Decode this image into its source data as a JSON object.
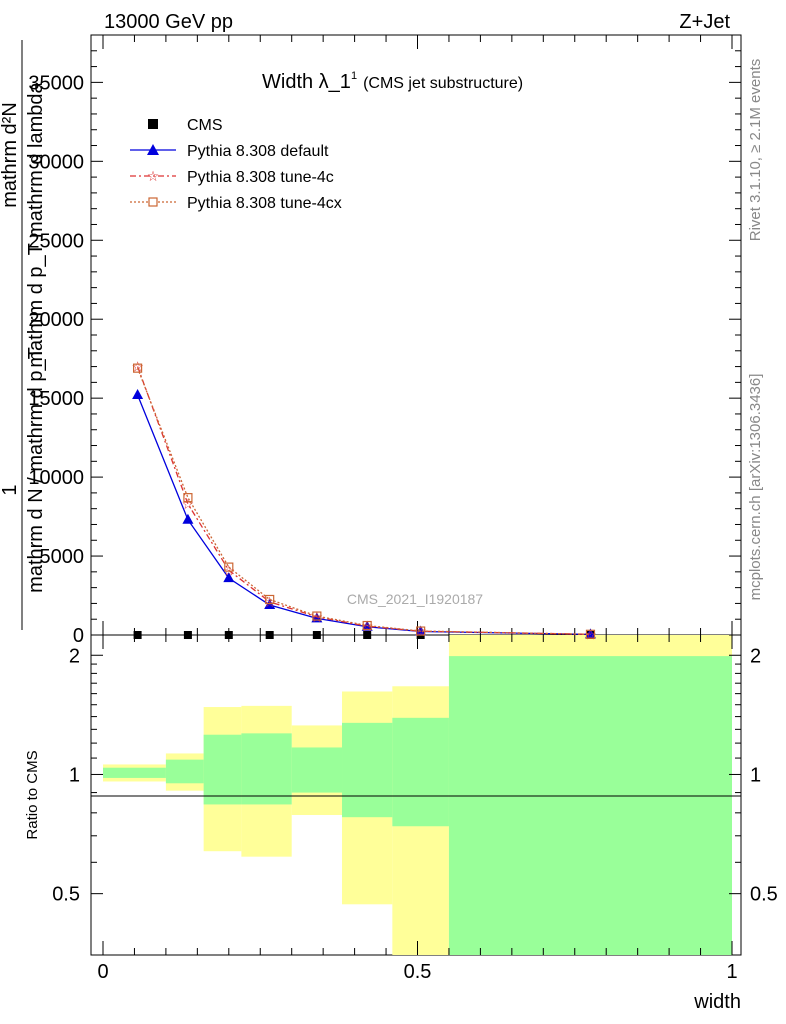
{
  "header": {
    "energy_label": "13000 GeV pp",
    "process_label": "Z+Jet"
  },
  "title": {
    "main": "Width λ_1",
    "superscript": "1",
    "sub": "(CMS jet substructure)"
  },
  "analysis_id": "CMS_2021_I1920187",
  "side_texts": {
    "rivet": "Rivet 3.1.10, ≥ 2.1M events",
    "mcplots": "mcplots.cern.ch [arXiv:1306.3436]"
  },
  "main_plot": {
    "ylabel_lines": [
      "mathrm d²N",
      "mathrm d p_T mathrm d lambda",
      "1",
      "mathrm d N / mathrm d p_T"
    ],
    "ylim": [
      0,
      38000
    ],
    "yticks": [
      0,
      5000,
      10000,
      15000,
      20000,
      25000,
      30000,
      35000
    ],
    "ytick_labels": [
      "0",
      "5000",
      "10000",
      "15000",
      "20000",
      "25000",
      "30000",
      "35000"
    ]
  },
  "ratio_plot": {
    "ylabel": "Ratio to CMS",
    "ylim": [
      0.35,
      2.25
    ],
    "yticks": [
      0.5,
      1,
      2
    ],
    "ytick_labels": [
      "0.5",
      "1",
      "2"
    ]
  },
  "x_axis": {
    "label": "width",
    "xlim": [
      0,
      1
    ],
    "ticks": [
      0,
      0.5,
      1
    ],
    "tick_labels": [
      "0",
      "0.5",
      "1"
    ]
  },
  "legend": [
    {
      "label": "CMS",
      "color": "#000000",
      "marker": "square"
    },
    {
      "label": "Pythia 8.308 default",
      "color": "#0000dd",
      "marker": "triangle"
    },
    {
      "label": "Pythia 8.308 tune-4c",
      "color": "#dd3333",
      "marker": "star"
    },
    {
      "label": "Pythia 8.308 tune-4cx",
      "color": "#cc6633",
      "marker": "open-square"
    }
  ],
  "chart_data": {
    "type": "line",
    "bin_edges": [
      0,
      0.1,
      0.16,
      0.22,
      0.3,
      0.38,
      0.46,
      0.55,
      1.0
    ],
    "x": [
      0.055,
      0.135,
      0.2,
      0.265,
      0.34,
      0.42,
      0.505,
      0.775
    ],
    "series": [
      {
        "name": "CMS",
        "color": "#000000",
        "values": [
          0,
          0,
          0,
          0,
          0,
          0,
          0,
          0
        ]
      },
      {
        "name": "Pythia 8.308 default",
        "color": "#0000dd",
        "values": [
          15200,
          7300,
          3600,
          1900,
          1050,
          520,
          220,
          40
        ]
      },
      {
        "name": "Pythia 8.308 tune-4c",
        "color": "#dd3333",
        "values": [
          17000,
          8300,
          4100,
          2100,
          1150,
          560,
          240,
          45
        ]
      },
      {
        "name": "Pythia 8.308 tune-4cx",
        "color": "#cc6633",
        "values": [
          16900,
          8700,
          4300,
          2250,
          1200,
          600,
          250,
          45
        ]
      }
    ],
    "ratio_bands": {
      "yellow": [
        [
          0.96,
          1.06
        ],
        [
          0.91,
          1.13
        ],
        [
          0.64,
          1.48
        ],
        [
          0.62,
          1.49
        ],
        [
          0.79,
          1.33
        ],
        [
          0.47,
          1.62
        ],
        [
          0.32,
          1.67
        ],
        [
          0.3,
          2.3
        ]
      ],
      "green": [
        [
          0.98,
          1.04
        ],
        [
          0.95,
          1.09
        ],
        [
          0.84,
          1.26
        ],
        [
          0.84,
          1.27
        ],
        [
          0.9,
          1.17
        ],
        [
          0.78,
          1.35
        ],
        [
          0.74,
          1.39
        ],
        [
          0.3,
          1.99
        ]
      ]
    },
    "title": "Width λ_1",
    "xlabel": "width",
    "ylim": [
      0,
      38000
    ],
    "xlim": [
      0,
      1
    ]
  }
}
